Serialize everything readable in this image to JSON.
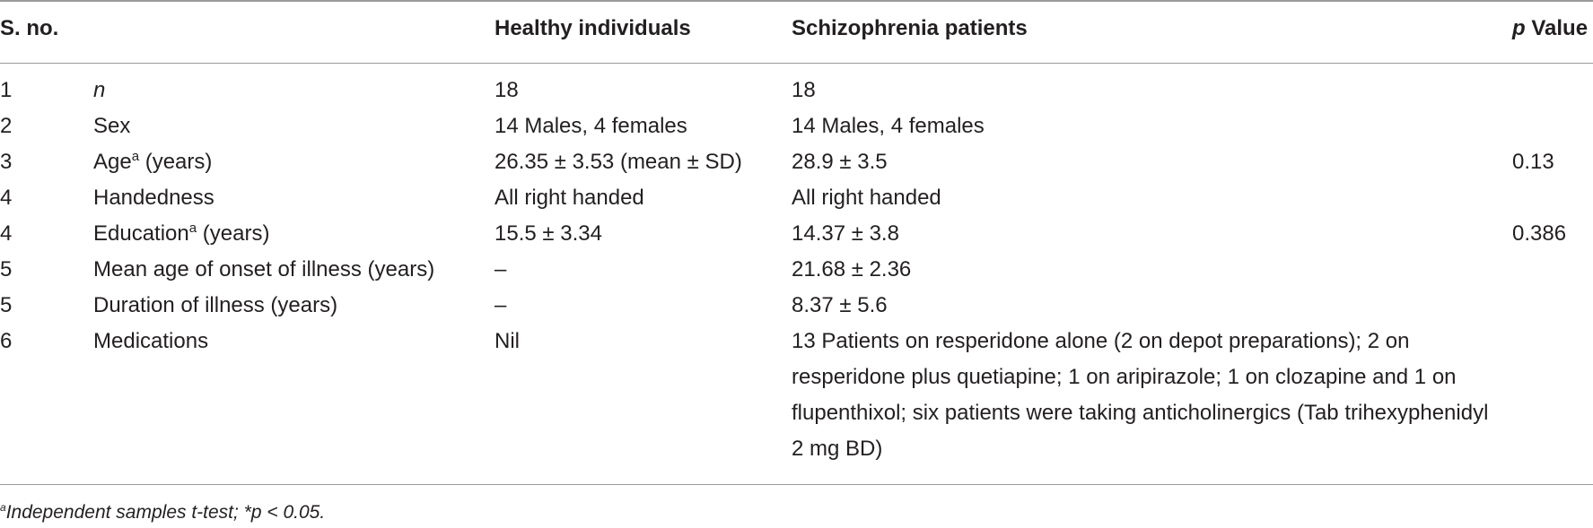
{
  "table": {
    "headers": {
      "sno": "S. no.",
      "healthy": "Healthy individuals",
      "schizo": "Schizophrenia patients",
      "p_italic": "p",
      "p_rest": " Value"
    },
    "rows": [
      {
        "sno": "1",
        "param": "n",
        "param_sup": "",
        "param_suffix": "",
        "healthy": "18",
        "schizo": "18",
        "p": ""
      },
      {
        "sno": "2",
        "param": "Sex",
        "param_sup": "",
        "param_suffix": "",
        "healthy": "14 Males, 4 females",
        "schizo": "14 Males, 4 females",
        "p": ""
      },
      {
        "sno": "3",
        "param": "Age",
        "param_sup": "a",
        "param_suffix": " (years)",
        "healthy": "26.35 ± 3.53 (mean ± SD)",
        "schizo": "28.9 ± 3.5",
        "p": "0.13"
      },
      {
        "sno": "4",
        "param": "Handedness",
        "param_sup": "",
        "param_suffix": "",
        "healthy": "All right handed",
        "schizo": "All right handed",
        "p": ""
      },
      {
        "sno": "4",
        "param": "Education",
        "param_sup": "a",
        "param_suffix": " (years)",
        "healthy": "15.5 ± 3.34",
        "schizo": "14.37 ± 3.8",
        "p": "0.386"
      },
      {
        "sno": "5",
        "param": "Mean age of onset of illness (years)",
        "param_sup": "",
        "param_suffix": "",
        "healthy": "–",
        "schizo": "21.68 ± 2.36",
        "p": ""
      },
      {
        "sno": "5",
        "param": "Duration of illness (years)",
        "param_sup": "",
        "param_suffix": "",
        "healthy": "–",
        "schizo": "8.37 ± 5.6",
        "p": ""
      },
      {
        "sno": "6",
        "param": "Medications",
        "param_sup": "",
        "param_suffix": "",
        "healthy": "Nil",
        "schizo": "13 Patients on resperidone alone (2 on depot preparations); 2 on resperidone plus quetiapine; 1 on aripirazole; 1 on clozapine and 1 on flupenthixol; six patients were taking anticholinergics (Tab trihexyphenidyl 2 mg BD)",
        "p": ""
      }
    ]
  },
  "footnote": {
    "marker": "a",
    "text": "Independent samples t-test; *p < 0.05."
  }
}
